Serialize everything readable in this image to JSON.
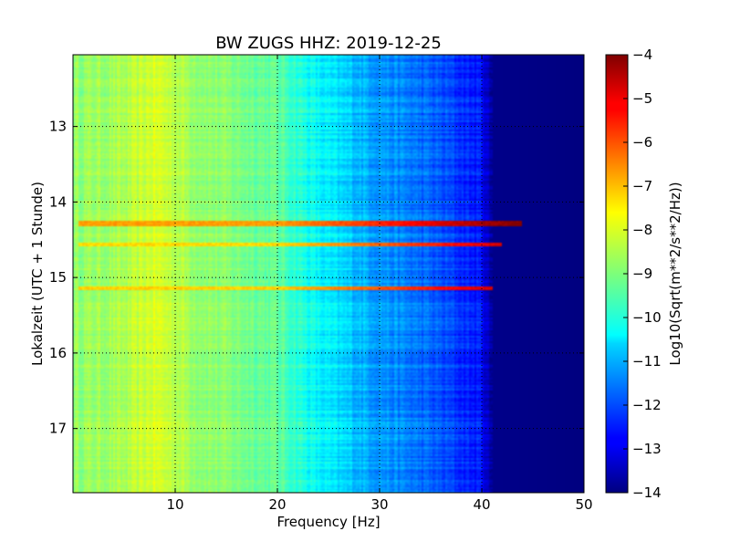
{
  "chart_data": {
    "type": "heatmap",
    "title": "BW ZUGS HHZ: 2019-12-25",
    "xlabel": "Frequency [Hz]",
    "ylabel": "Lokalzeit (UTC + 1 Stunde)",
    "xlim": [
      0,
      50
    ],
    "ylim": [
      12.05,
      17.85
    ],
    "y_inverted": true,
    "grid": true,
    "x_ticks": [
      10,
      20,
      30,
      40,
      50
    ],
    "y_ticks": [
      13,
      14,
      15,
      16,
      17
    ],
    "colorbar": {
      "label": "Log10(Sqrt(m**2/s**2/Hz))",
      "range": [
        -14,
        -4
      ],
      "ticks": [
        -4,
        -5,
        -6,
        -7,
        -8,
        -9,
        -10,
        -11,
        -12,
        -13,
        -14
      ],
      "colormap": "jet"
    },
    "background_level_by_frequency": [
      {
        "f": 0,
        "v": -8.8
      },
      {
        "f": 5,
        "v": -8.6
      },
      {
        "f": 8,
        "v": -8.1
      },
      {
        "f": 12,
        "v": -8.7
      },
      {
        "f": 20,
        "v": -9.3
      },
      {
        "f": 24,
        "v": -10.3
      },
      {
        "f": 30,
        "v": -11.2
      },
      {
        "f": 35,
        "v": -11.8
      },
      {
        "f": 40,
        "v": -12.6
      },
      {
        "f": 41,
        "v": -13.9
      },
      {
        "f": 50,
        "v": -14
      }
    ],
    "bands": [
      {
        "time": 14.28,
        "peak_level": -6.8,
        "max_frequency": 44
      },
      {
        "time": 14.56,
        "peak_level": -7.4,
        "max_frequency": 42
      },
      {
        "time": 15.14,
        "peak_level": -7.3,
        "max_frequency": 41
      }
    ]
  }
}
